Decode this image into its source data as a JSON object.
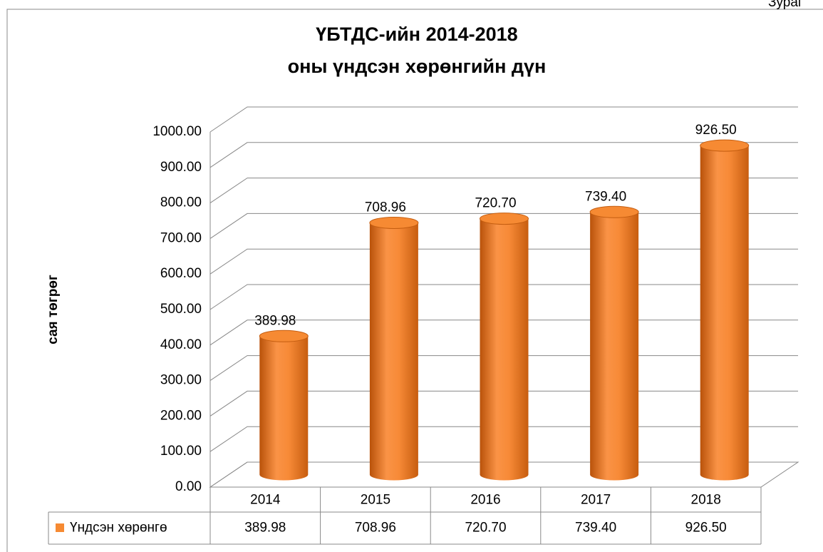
{
  "chart_data": {
    "type": "bar3d",
    "title": [
      "ҮБТДС-ийн 2014-2018",
      "оны үндсэн хөрөнгийн дүн"
    ],
    "note": "Зураг",
    "ylabel": "сая төгрөг",
    "categories": [
      "2014",
      "2015",
      "2016",
      "2017",
      "2018"
    ],
    "series": [
      {
        "name": "Үндсэн хөрөнгө",
        "color": "#f68a33",
        "values": [
          389.98,
          708.96,
          720.7,
          739.4,
          926.5
        ],
        "value_labels": [
          "389.98",
          "708.96",
          "720.70",
          "739.40",
          "926.50"
        ]
      }
    ],
    "ylim": [
      0,
      1000
    ],
    "yticks": [
      {
        "value": 0,
        "label": "0.00"
      },
      {
        "value": 100,
        "label": "100.00"
      },
      {
        "value": 200,
        "label": "200.00"
      },
      {
        "value": 300,
        "label": "300.00"
      },
      {
        "value": 400,
        "label": "400.00"
      },
      {
        "value": 500,
        "label": "500.00"
      },
      {
        "value": 600,
        "label": "600.00"
      },
      {
        "value": 700,
        "label": "700.00"
      },
      {
        "value": 800,
        "label": "800.00"
      },
      {
        "value": 900,
        "label": "900.00"
      },
      {
        "value": 1000,
        "label": "1000.00"
      }
    ],
    "grid": true,
    "data_table": true
  }
}
